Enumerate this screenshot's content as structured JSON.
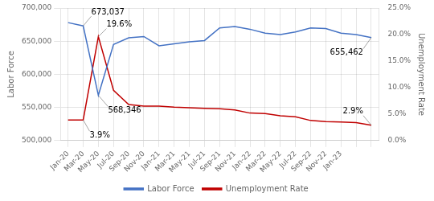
{
  "chart_data": {
    "type": "line",
    "categories": [
      "Jan-20",
      "Mar-20",
      "May-20",
      "Jul-20",
      "Sep-20",
      "Nov-20",
      "Jan-21",
      "Mar-21",
      "May-21",
      "Jul-21",
      "Sep-21",
      "Nov-21",
      "Jan-22",
      "Mar-22",
      "May-22",
      "Jul-22",
      "Sep-22",
      "Nov-22",
      "Jan-23",
      null,
      null
    ],
    "series": [
      {
        "name": "Labor Force",
        "color": "#4472C4",
        "axis": "y",
        "values": [
          678000,
          673037,
          568346,
          645000,
          655000,
          657000,
          643000,
          646000,
          649000,
          651000,
          670000,
          672000,
          668000,
          662000,
          660000,
          664000,
          670000,
          669000,
          662000,
          660000,
          655462
        ]
      },
      {
        "name": "Unemployment Rate",
        "color": "#C00000",
        "axis": "y2",
        "values": [
          3.9,
          3.9,
          19.6,
          9.5,
          6.8,
          6.5,
          6.5,
          6.3,
          6.2,
          6.1,
          6.0,
          5.8,
          5.2,
          5.1,
          4.7,
          4.5,
          3.8,
          3.6,
          3.5,
          3.4,
          2.9
        ]
      }
    ],
    "y_label": "Labor Force",
    "y2_label": "Unemployment Rate",
    "ylim": [
      500000,
      700000
    ],
    "yticks": [
      {
        "value": 500000,
        "label": "500,000"
      },
      {
        "value": 550000,
        "label": "550,000"
      },
      {
        "value": 600000,
        "label": "600,000"
      },
      {
        "value": 650000,
        "label": "650,000"
      },
      {
        "value": 700000,
        "label": "700,000"
      }
    ],
    "y2lim": [
      0,
      25
    ],
    "y2ticks": [
      {
        "value": 0,
        "label": "0.0%"
      },
      {
        "value": 5,
        "label": "5.0%"
      },
      {
        "value": 10,
        "label": "10.0%"
      },
      {
        "value": 15,
        "label": "15.0%"
      },
      {
        "value": 20,
        "label": "20.0%"
      },
      {
        "value": 25,
        "label": "25.0%"
      }
    ],
    "grid": true,
    "legend": "bottom",
    "annotations": [
      {
        "text": "673,037",
        "x": 1,
        "y": 673037,
        "axis": "y"
      },
      {
        "text": "568,346",
        "x": 2,
        "y": 568346,
        "axis": "y"
      },
      {
        "text": "655,462",
        "x": 20,
        "y": 655462,
        "axis": "y"
      },
      {
        "text": "19.6%",
        "x": 2,
        "y": 19.6,
        "axis": "y2"
      },
      {
        "text": "3.9%",
        "x": 1,
        "y": 3.9,
        "axis": "y2"
      },
      {
        "text": "2.9%",
        "x": 20,
        "y": 2.9,
        "axis": "y2"
      }
    ]
  }
}
